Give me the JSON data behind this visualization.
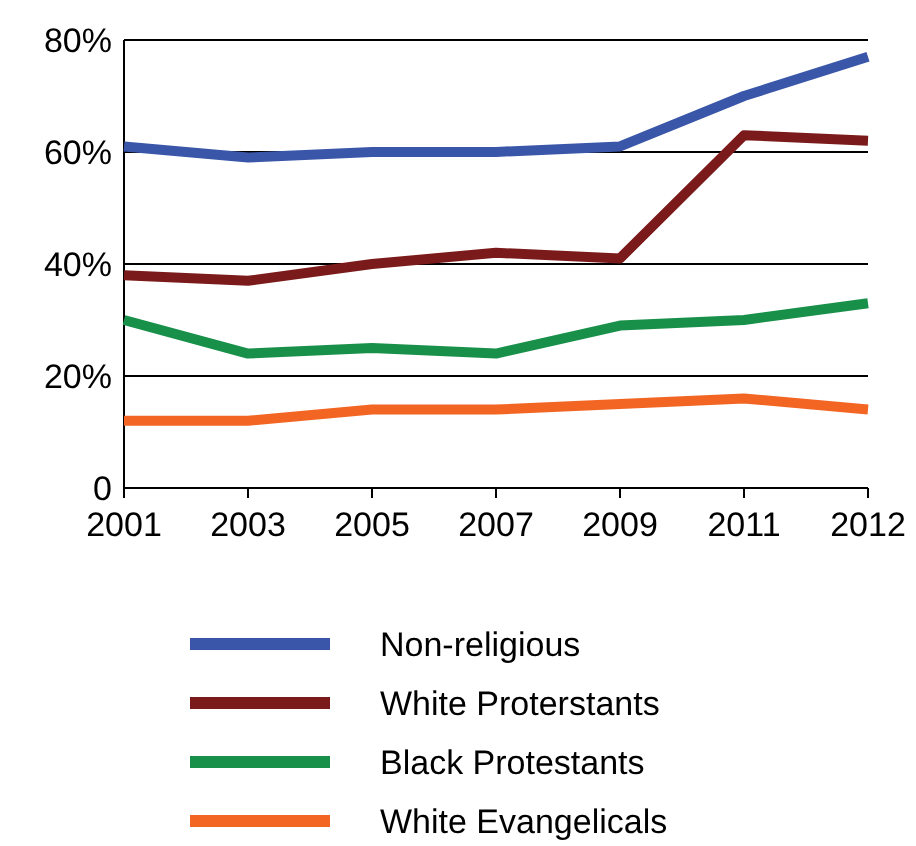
{
  "chart_data": {
    "type": "line",
    "categories": [
      "2001",
      "2003",
      "2005",
      "2007",
      "2009",
      "2011",
      "2012"
    ],
    "ylim": [
      0,
      80
    ],
    "yticks": [
      {
        "value": 0,
        "label": "0"
      },
      {
        "value": 20,
        "label": "20%"
      },
      {
        "value": 40,
        "label": "40%"
      },
      {
        "value": 60,
        "label": "60%"
      },
      {
        "value": 80,
        "label": "80%"
      }
    ],
    "grid": "y",
    "legend": "bottom",
    "marker": "none",
    "line_style": "solid",
    "series": [
      {
        "name": "Non-religious",
        "color": "#3a56a8",
        "values": [
          61,
          59,
          60,
          60,
          61,
          70,
          77
        ]
      },
      {
        "name": "White Proterstants",
        "color": "#7b1a1a",
        "values": [
          38,
          37,
          40,
          42,
          41,
          63,
          62
        ]
      },
      {
        "name": "Black Protestants",
        "color": "#18904a",
        "values": [
          30,
          24,
          25,
          24,
          29,
          30,
          33
        ]
      },
      {
        "name": "White Evangelicals",
        "color": "#f26522",
        "values": [
          12,
          12,
          14,
          14,
          15,
          16,
          14
        ]
      }
    ]
  }
}
